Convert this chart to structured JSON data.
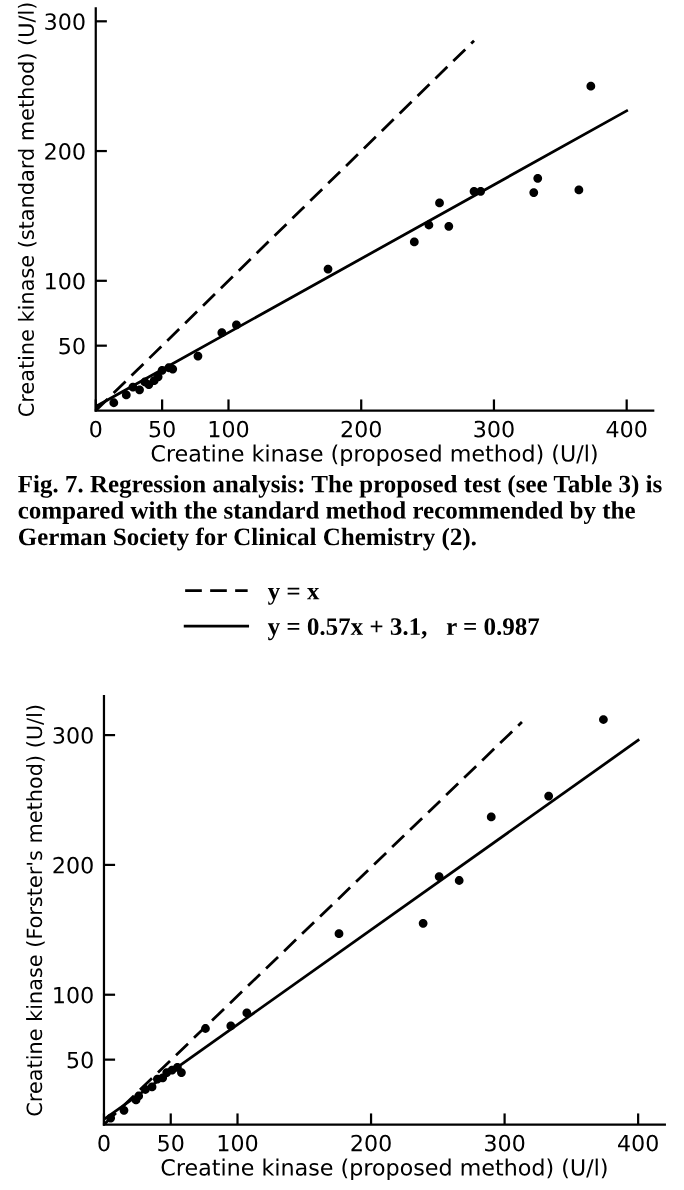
{
  "chart_data": [
    {
      "type": "scatter",
      "xlabel": "Creatine kinase (proposed method) (U/l)",
      "ylabel": "Creatine kinase (standard method) (U/l)",
      "xlim": [
        0,
        420
      ],
      "ylim": [
        0,
        310
      ],
      "xticks": [
        0,
        50,
        100,
        200,
        300,
        400
      ],
      "yticks": [
        50,
        100,
        200,
        300
      ],
      "grid": false,
      "legend": "bottom",
      "annotations": [
        "Fig. 7. Regression analysis: The proposed test (see Table 3) is compared with the standard method recommended by the German Society for Clinical Chemistry (2)."
      ],
      "series": [
        {
          "marker": "circle",
          "color": "#000000",
          "x": [
            13.6,
            23,
            28,
            33,
            37,
            40,
            44,
            47,
            50,
            55,
            58,
            77,
            95,
            106,
            175,
            240,
            251,
            259,
            266,
            285,
            290,
            330,
            333,
            364,
            373
          ],
          "values": [
            6,
            12,
            18,
            16,
            22,
            20,
            23,
            26,
            31,
            33,
            32,
            42,
            60,
            66,
            109,
            130,
            143,
            160,
            142,
            169,
            169,
            168,
            179,
            170,
            250
          ]
        },
        {
          "type": "line",
          "marker": "none",
          "name": "y = x",
          "line_style": "dashed",
          "color": "#000000",
          "x": [
            0,
            285
          ],
          "values": [
            0,
            285
          ]
        },
        {
          "type": "line",
          "marker": "none",
          "name": "y = 0.57x + 3.1,   r = 0.987",
          "line_style": "solid",
          "color": "#000000",
          "x": [
            0,
            400
          ],
          "values": [
            3.1,
            231
          ]
        }
      ]
    },
    {
      "type": "scatter",
      "xlabel": "Creatine kinase (proposed method) (U/l)",
      "ylabel": "Creatine kinase (Forster's method) (U/l)",
      "xlim": [
        0,
        420
      ],
      "ylim": [
        0,
        330
      ],
      "xticks": [
        0,
        50,
        100,
        200,
        300,
        400
      ],
      "yticks": [
        50,
        100,
        200,
        300
      ],
      "grid": false,
      "series": [
        {
          "marker": "circle",
          "color": "#000000",
          "x": [
            5,
            15,
            24,
            26,
            31,
            36,
            40,
            44,
            47,
            51,
            55,
            58,
            76,
            95,
            107,
            176,
            239,
            251,
            266,
            290,
            333,
            374
          ],
          "values": [
            5,
            11,
            19,
            22,
            27,
            29,
            35,
            36,
            40,
            42,
            44,
            40,
            74,
            76,
            86,
            147,
            155,
            191,
            188,
            237,
            253,
            312
          ]
        },
        {
          "type": "line",
          "marker": "none",
          "line_style": "dashed",
          "color": "#000000",
          "x": [
            0,
            313
          ],
          "values": [
            0,
            310
          ]
        },
        {
          "type": "line",
          "marker": "none",
          "line_style": "solid",
          "color": "#000000",
          "x": [
            0,
            400
          ],
          "values": [
            4,
            296
          ]
        }
      ]
    }
  ]
}
